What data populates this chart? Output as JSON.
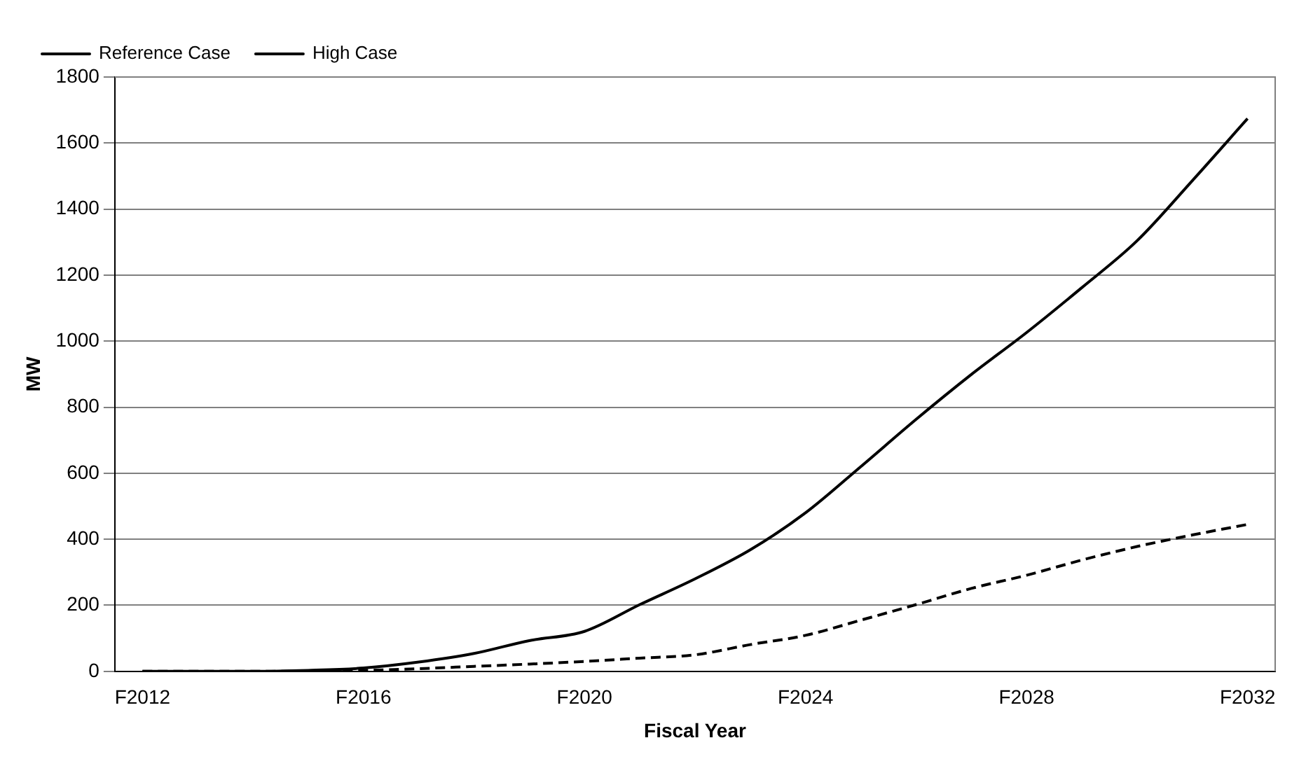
{
  "chart_data": {
    "type": "line",
    "xlabel": "Fiscal Year",
    "ylabel": "MW",
    "categories": [
      "F2012",
      null,
      null,
      null,
      "F2016",
      null,
      null,
      null,
      "F2020",
      null,
      null,
      null,
      "F2024",
      null,
      null,
      null,
      "F2028",
      null,
      null,
      null,
      "F2032"
    ],
    "series": [
      {
        "name": "Reference Case",
        "color": "#000000",
        "line_style": "dashed",
        "values": [
          0,
          0,
          0,
          1,
          3,
          8,
          15,
          22,
          30,
          40,
          50,
          81,
          109,
          155,
          202,
          251,
          291,
          337,
          378,
          413,
          445
        ]
      },
      {
        "name": "High Case",
        "color": "#000000",
        "line_style": "solid",
        "values": [
          0,
          0,
          0,
          3,
          10,
          28,
          54,
          93,
          121,
          202,
          280,
          368,
          480,
          620,
          763,
          899,
          1026,
          1162,
          1304,
          1486,
          1674
        ]
      }
    ],
    "ylim": [
      0,
      1800
    ],
    "yticks": [
      0,
      200,
      400,
      600,
      800,
      1000,
      1200,
      1400,
      1600,
      1800
    ],
    "grid": "y",
    "legend": "top left",
    "marker": "none"
  }
}
